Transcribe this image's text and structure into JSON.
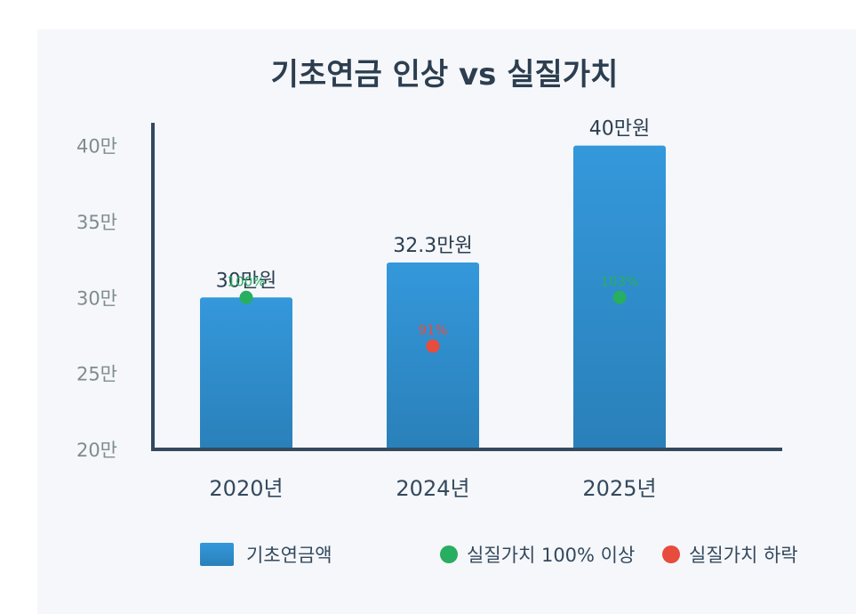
{
  "chart_data": {
    "type": "bar",
    "title": "기초연금 인상 vs 실질가치",
    "categories": [
      "2020년",
      "2024년",
      "2025년"
    ],
    "values": [
      30,
      32.3,
      40
    ],
    "value_labels": [
      "30만원",
      "32.3만원",
      "40만원"
    ],
    "real_value_pct": [
      100,
      91,
      103
    ],
    "real_value_labels": [
      "100%",
      "91%",
      "103%"
    ],
    "real_value_status": [
      "up",
      "down",
      "up"
    ],
    "yticks": [
      20,
      25,
      30,
      35,
      40
    ],
    "ytick_labels": [
      "20만",
      "25만",
      "30만",
      "35만",
      "40만"
    ],
    "ylim": [
      20,
      41.5
    ],
    "grid": false,
    "legend": [
      {
        "label": "기초연금액",
        "kind": "bar",
        "color": "#3498db"
      },
      {
        "label": "실질가치 100% 이상",
        "kind": "dot",
        "color": "#27ae60"
      },
      {
        "label": "실질가치 하락",
        "kind": "dot",
        "color": "#e74c3c"
      }
    ],
    "legend_position": "bottom",
    "colors": {
      "bar_top": "#3498db",
      "bar_bottom": "#2a80b9",
      "up": "#27ae60",
      "down": "#e74c3c",
      "axis": "#34495e"
    }
  }
}
